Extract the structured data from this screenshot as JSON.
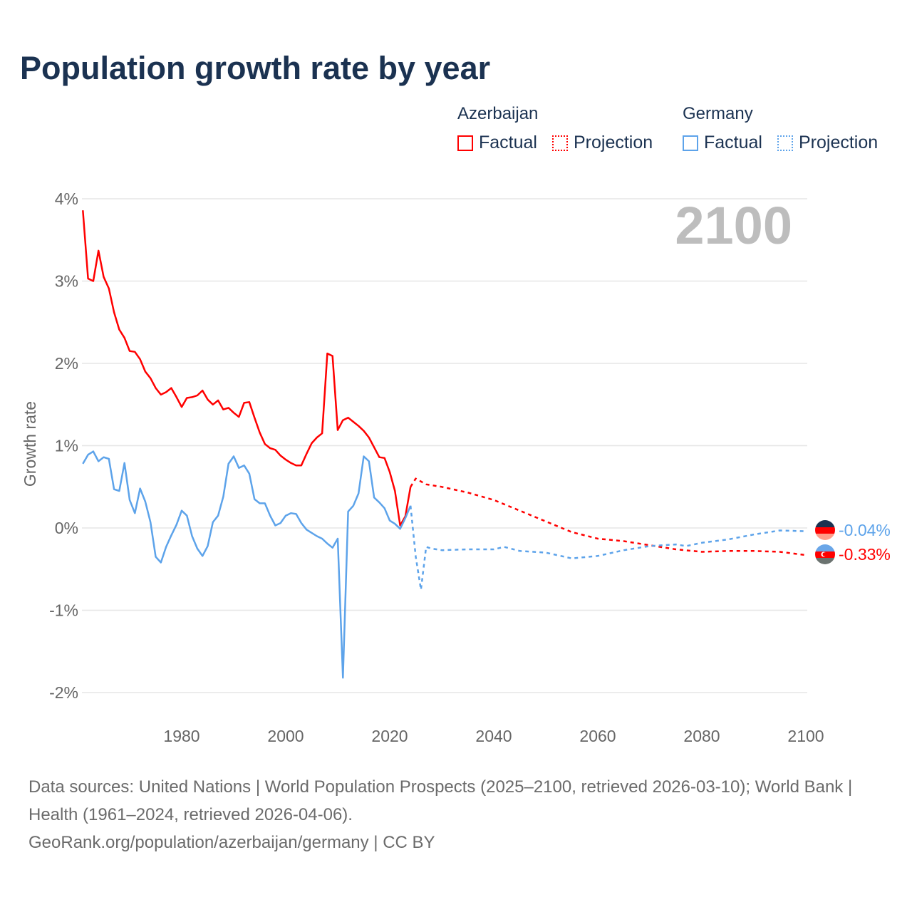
{
  "title": "Population growth rate by year",
  "legend": {
    "groups": [
      {
        "country": "Azerbaijan",
        "factual": "Factual",
        "projection": "Projection",
        "color": "#ff0000"
      },
      {
        "country": "Germany",
        "factual": "Factual",
        "projection": "Projection",
        "color": "#5da3ea"
      }
    ]
  },
  "year_watermark": "2100",
  "end_labels": {
    "germany": "-0.04%",
    "azerbaijan": "-0.33%"
  },
  "footer": {
    "sources": "Data sources: United Nations | World Population Prospects (2025–2100, retrieved 2026-03-10); World Bank | Health (1961–2024, retrieved 2026-04-06).",
    "link": "GeoRank.org/population/azerbaijan/germany | CC BY"
  },
  "chart_data": {
    "type": "line",
    "title": "Population growth rate by year",
    "xlabel": "",
    "ylabel": "Growth rate",
    "xlim": [
      1961,
      2100
    ],
    "ylim": [
      -2,
      4
    ],
    "x_ticks": [
      "1980",
      "2000",
      "2020",
      "2040",
      "2060",
      "2080",
      "2100"
    ],
    "x_tick_values": [
      1980,
      2000,
      2020,
      2040,
      2060,
      2080,
      2100
    ],
    "y_ticks": [
      "4%",
      "3%",
      "2%",
      "1%",
      "0%",
      "-1%",
      "-2%"
    ],
    "y_tick_values": [
      4,
      3,
      2,
      1,
      0,
      -1,
      -2
    ],
    "grid": true,
    "series": [
      {
        "name": "Azerbaijan Factual",
        "color": "#ff0000",
        "style": "solid",
        "x": [
          1961,
          1962,
          1963,
          1964,
          1965,
          1966,
          1967,
          1968,
          1969,
          1970,
          1971,
          1972,
          1973,
          1974,
          1975,
          1976,
          1977,
          1978,
          1979,
          1980,
          1981,
          1982,
          1983,
          1984,
          1985,
          1986,
          1987,
          1988,
          1989,
          1990,
          1991,
          1992,
          1993,
          1994,
          1995,
          1996,
          1997,
          1998,
          1999,
          2000,
          2001,
          2002,
          2003,
          2004,
          2005,
          2006,
          2007,
          2008,
          2009,
          2010,
          2011,
          2012,
          2013,
          2014,
          2015,
          2016,
          2017,
          2018,
          2019,
          2020,
          2021,
          2022,
          2023,
          2024
        ],
        "values": [
          3.86,
          3.03,
          3.0,
          3.37,
          3.05,
          2.91,
          2.62,
          2.41,
          2.31,
          2.15,
          2.14,
          2.05,
          1.9,
          1.82,
          1.7,
          1.62,
          1.65,
          1.7,
          1.59,
          1.47,
          1.58,
          1.59,
          1.61,
          1.67,
          1.56,
          1.5,
          1.55,
          1.44,
          1.46,
          1.4,
          1.35,
          1.52,
          1.53,
          1.34,
          1.16,
          1.02,
          0.97,
          0.95,
          0.88,
          0.83,
          0.79,
          0.76,
          0.76,
          0.9,
          1.03,
          1.1,
          1.15,
          2.12,
          2.09,
          1.19,
          1.31,
          1.34,
          1.29,
          1.24,
          1.18,
          1.1,
          0.98,
          0.86,
          0.85,
          0.68,
          0.45,
          0.03,
          0.14,
          0.5
        ]
      },
      {
        "name": "Azerbaijan Projection",
        "color": "#ff0000",
        "style": "dotted",
        "x": [
          2024,
          2025,
          2027,
          2030,
          2035,
          2040,
          2045,
          2050,
          2055,
          2060,
          2065,
          2070,
          2075,
          2080,
          2085,
          2090,
          2095,
          2100
        ],
        "values": [
          0.5,
          0.6,
          0.53,
          0.5,
          0.43,
          0.34,
          0.21,
          0.08,
          -0.05,
          -0.13,
          -0.16,
          -0.21,
          -0.26,
          -0.29,
          -0.28,
          -0.28,
          -0.29,
          -0.33
        ]
      },
      {
        "name": "Germany Factual",
        "color": "#5da3ea",
        "style": "solid",
        "x": [
          1961,
          1962,
          1963,
          1964,
          1965,
          1966,
          1967,
          1968,
          1969,
          1970,
          1971,
          1972,
          1973,
          1974,
          1975,
          1976,
          1977,
          1978,
          1979,
          1980,
          1981,
          1982,
          1983,
          1984,
          1985,
          1986,
          1987,
          1988,
          1989,
          1990,
          1991,
          1992,
          1993,
          1994,
          1995,
          1996,
          1997,
          1998,
          1999,
          2000,
          2001,
          2002,
          2003,
          2004,
          2005,
          2006,
          2007,
          2008,
          2009,
          2010,
          2011,
          2012,
          2013,
          2014,
          2015,
          2016,
          2017,
          2018,
          2019,
          2020,
          2021,
          2022,
          2023,
          2024
        ],
        "values": [
          0.78,
          0.89,
          0.93,
          0.81,
          0.86,
          0.84,
          0.47,
          0.45,
          0.79,
          0.34,
          0.18,
          0.48,
          0.32,
          0.07,
          -0.35,
          -0.42,
          -0.23,
          -0.09,
          0.04,
          0.21,
          0.15,
          -0.1,
          -0.25,
          -0.34,
          -0.22,
          0.07,
          0.15,
          0.38,
          0.78,
          0.87,
          0.73,
          0.76,
          0.66,
          0.35,
          0.3,
          0.3,
          0.15,
          0.03,
          0.06,
          0.15,
          0.18,
          0.17,
          0.06,
          -0.02,
          -0.06,
          -0.1,
          -0.13,
          -0.19,
          -0.24,
          -0.13,
          -1.82,
          0.2,
          0.27,
          0.42,
          0.87,
          0.81,
          0.37,
          0.31,
          0.24,
          0.09,
          0.05,
          -0.01,
          0.12,
          0.27
        ]
      },
      {
        "name": "Germany Projection",
        "color": "#5da3ea",
        "style": "dotted",
        "x": [
          2024,
          2025,
          2026,
          2027,
          2028,
          2030,
          2035,
          2040,
          2042,
          2045,
          2050,
          2055,
          2060,
          2065,
          2070,
          2075,
          2077,
          2080,
          2085,
          2090,
          2095,
          2100
        ],
        "values": [
          0.27,
          -0.35,
          -0.75,
          -0.23,
          -0.25,
          -0.27,
          -0.26,
          -0.26,
          -0.23,
          -0.28,
          -0.3,
          -0.37,
          -0.34,
          -0.27,
          -0.22,
          -0.2,
          -0.22,
          -0.18,
          -0.14,
          -0.08,
          -0.03,
          -0.04
        ]
      }
    ]
  }
}
